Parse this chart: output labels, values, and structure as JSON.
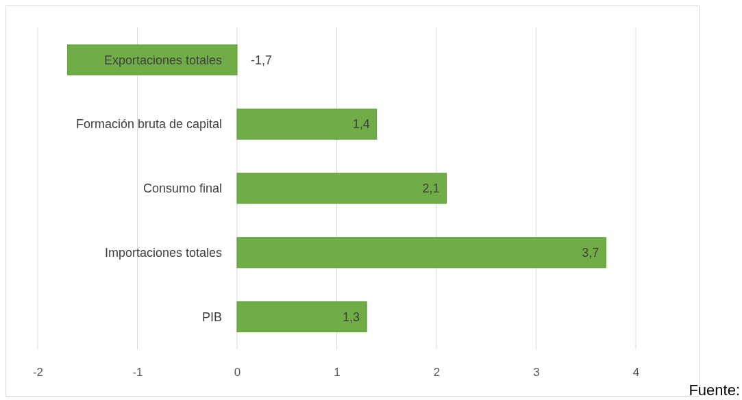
{
  "chart_data": {
    "type": "bar",
    "orientation": "horizontal",
    "categories": [
      "Exportaciones totales",
      "Formación bruta de capital",
      "Consumo final",
      "Importaciones totales",
      "PIB"
    ],
    "values": [
      -1.7,
      1.4,
      2.1,
      3.7,
      1.3
    ],
    "value_labels": [
      "-1,7",
      "1,4",
      "2,1",
      "3,7",
      "1,3"
    ],
    "color": "#70ad47",
    "xlim": [
      -2,
      4
    ],
    "xticks": [
      -2,
      -1,
      0,
      1,
      2,
      3,
      4
    ],
    "grid": "x",
    "annotations": [
      "Fuente:"
    ]
  }
}
